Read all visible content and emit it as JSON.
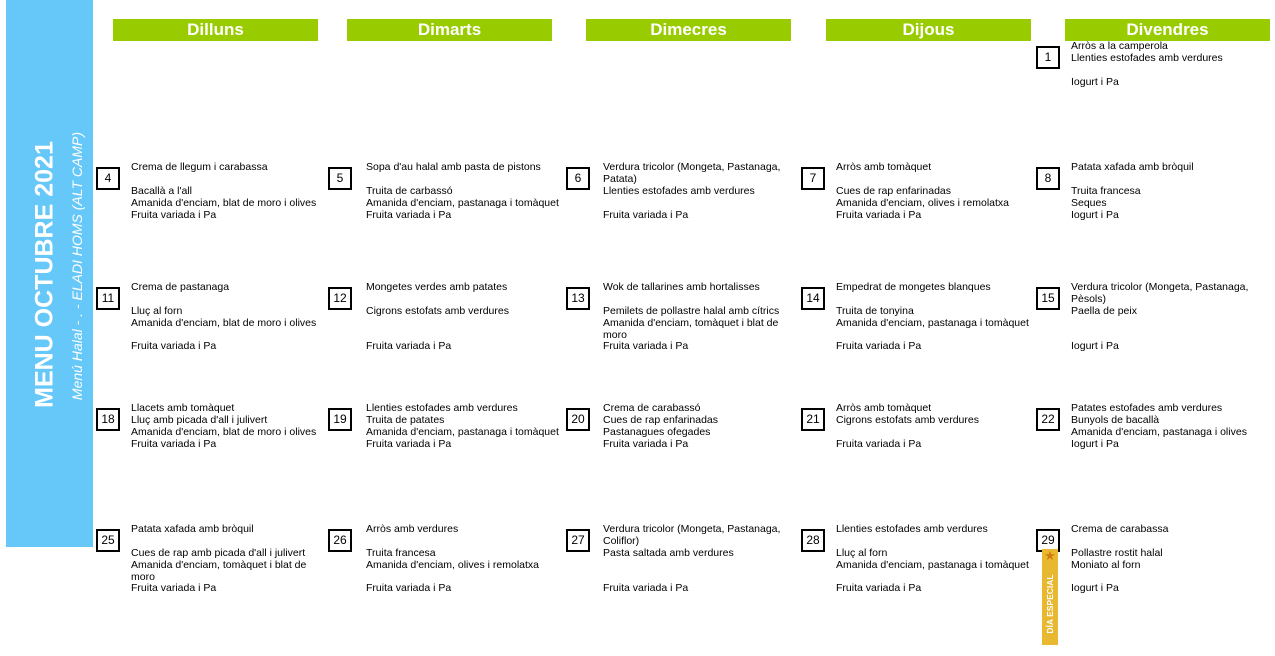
{
  "sidebar": {
    "title": "MENU OCTUBRE 2021",
    "subtitle": "Menú Halal - . - ELADI HOMS (ALT CAMP)"
  },
  "colors": {
    "sidebar": "#66c8f8",
    "header": "#99cc00",
    "special": "#e8b830"
  },
  "weekdays": [
    "Dilluns",
    "Dimarts",
    "Dimecres",
    "Dijous",
    "Divendres"
  ],
  "special_badge": {
    "label": "DÍA ESPECIAL",
    "icon": "star-icon",
    "day": "29"
  },
  "weeks": [
    [
      null,
      null,
      null,
      null,
      {
        "day": "1",
        "lines": [
          "Arròs a la camperola",
          "Llenties estofades amb verdures",
          "",
          "Iogurt i Pa"
        ]
      }
    ],
    [
      {
        "day": "4",
        "lines": [
          "Crema de llegum i carabassa",
          "",
          "Bacallà a l'all",
          "Amanida d'enciam, blat de moro i olives",
          "Fruita variada i Pa"
        ]
      },
      {
        "day": "5",
        "lines": [
          "Sopa d'au halal amb pasta de pistons",
          "",
          "Truita de carbassó",
          "Amanida d'enciam, pastanaga i tomàquet",
          "Fruita variada i Pa"
        ]
      },
      {
        "day": "6",
        "lines": [
          "Verdura tricolor (Mongeta, Pastanaga,",
          "Patata)",
          "Llenties estofades amb verdures",
          "",
          "Fruita variada i Pa"
        ]
      },
      {
        "day": "7",
        "lines": [
          "Arròs amb tomàquet",
          "",
          "Cues de rap enfarinadas",
          "Amanida d'enciam, olives i remolatxa",
          "Fruita variada i Pa"
        ]
      },
      {
        "day": "8",
        "lines": [
          "Patata xafada amb bròquil",
          "",
          "Truita francesa",
          "Seques",
          "Iogurt i Pa"
        ]
      }
    ],
    [
      {
        "day": "11",
        "lines": [
          "Crema de pastanaga",
          "",
          "Lluç al forn",
          "Amanida d'enciam, blat de moro i olives",
          "",
          "Fruita variada i Pa"
        ]
      },
      {
        "day": "12",
        "lines": [
          "Mongetes verdes amb patates",
          "",
          "Cigrons estofats amb verdures",
          "",
          "",
          "Fruita variada i Pa"
        ]
      },
      {
        "day": "13",
        "lines": [
          "Wok de tallarines amb hortalisses",
          "",
          "Pemilets de pollastre halal amb cítrics",
          "Amanida d'enciam, tomàquet i blat de",
          "moro",
          "Fruita variada i Pa"
        ]
      },
      {
        "day": "14",
        "lines": [
          "Empedrat de mongetes blanques",
          "",
          "Truita de tonyina",
          "Amanida d'enciam, pastanaga i tomàquet",
          "",
          "Fruita variada i Pa"
        ]
      },
      {
        "day": "15",
        "lines": [
          "Verdura tricolor (Mongeta, Pastanaga,",
          "Pèsols)",
          "Paella de peix",
          "",
          "",
          "Iogurt i Pa"
        ]
      }
    ],
    [
      {
        "day": "18",
        "lines": [
          "Llacets amb tomàquet",
          "Lluç amb picada d'all i julivert",
          "Amanida d'enciam, blat de moro i olives",
          "Fruita variada i Pa"
        ]
      },
      {
        "day": "19",
        "lines": [
          "Llenties estofades amb verdures",
          "Truita de patates",
          "Amanida d'enciam, pastanaga i tomàquet",
          "Fruita variada i Pa"
        ]
      },
      {
        "day": "20",
        "lines": [
          "Crema de carabassó",
          "Cues de rap enfarinadas",
          "Pastanagues ofegades",
          "Fruita variada i Pa"
        ]
      },
      {
        "day": "21",
        "lines": [
          "Arròs amb tomàquet",
          "Cigrons estofats amb verdures",
          "",
          "Fruita variada i Pa"
        ]
      },
      {
        "day": "22",
        "lines": [
          "Patates estofades amb verdures",
          "Bunyols de bacallà",
          "Amanida d'enciam, pastanaga i olives",
          "Iogurt i Pa"
        ]
      }
    ],
    [
      {
        "day": "25",
        "lines": [
          "Patata xafada amb bròquil",
          "",
          "Cues de rap amb picada d'all i julivert",
          "Amanida d'enciam, tomàquet i blat de",
          "moro",
          "Fruita variada i Pa"
        ]
      },
      {
        "day": "26",
        "lines": [
          "Arròs amb verdures",
          "",
          "Truita francesa",
          "Amanida d'enciam, olives i remolatxa",
          "",
          "Fruita variada i Pa"
        ]
      },
      {
        "day": "27",
        "lines": [
          "Verdura tricolor (Mongeta, Pastanaga,",
          "Coliflor)",
          "Pasta saltada amb verdures",
          "",
          "",
          "Fruita variada i Pa"
        ]
      },
      {
        "day": "28",
        "lines": [
          "Llenties estofades amb verdures",
          "",
          "Lluç al forn",
          "Amanida d'enciam, pastanaga i tomàquet",
          "",
          "Fruita variada i Pa"
        ]
      },
      {
        "day": "29",
        "lines": [
          "Crema de carabassa",
          "",
          "Pollastre rostit halal",
          "Moniato al forn",
          "",
          "Iogurt i Pa"
        ]
      }
    ]
  ]
}
